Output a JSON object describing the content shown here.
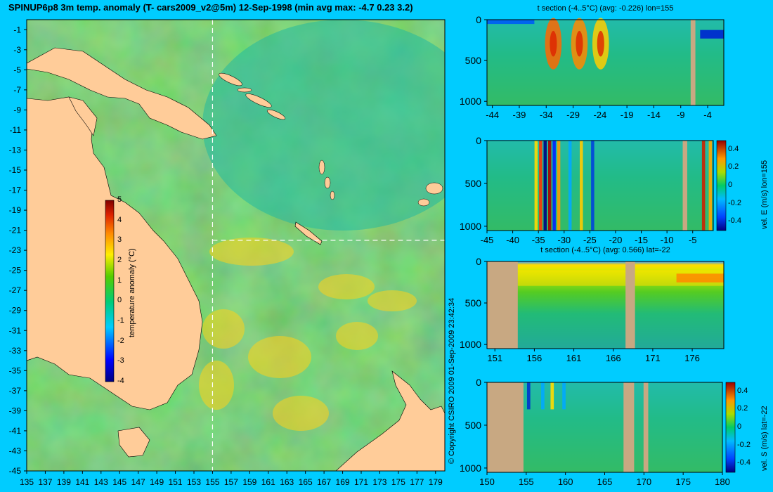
{
  "header": {
    "title": "SPINUP6p8 3m temp. anomaly (T- cars2009_v2@5m) 12-Sep-1998 (min avg max: -4.7 0.23 3.2)"
  },
  "copyright": "© Copyright CSIRO 2009  01-Sep-2009 23:42:34",
  "colors": {
    "background": "#00ccff",
    "land": "#ffcc99",
    "section_land": "#c8a882",
    "ocean_base": "#33bb55"
  },
  "map": {
    "xticks": [
      "135",
      "137",
      "139",
      "141",
      "143",
      "145",
      "147",
      "149",
      "151",
      "153",
      "155",
      "157",
      "159",
      "161",
      "163",
      "165",
      "167",
      "169",
      "171",
      "173",
      "175",
      "177",
      "179"
    ],
    "yticks": [
      "-1",
      "-3",
      "-5",
      "-7",
      "-9",
      "-11",
      "-13",
      "-15",
      "-17",
      "-19",
      "-21",
      "-23",
      "-25",
      "-27",
      "-29",
      "-31",
      "-33",
      "-35",
      "-37",
      "-39",
      "-41",
      "-43",
      "-45"
    ],
    "crosshair_lon": 155,
    "crosshair_lat": -22,
    "colorbar": {
      "label": "temperature anomaly (°C)",
      "ticks": [
        "5",
        "4",
        "3",
        "2",
        "1",
        "0",
        "-1",
        "-2",
        "-3",
        "-4"
      ],
      "range": [
        -4,
        5
      ]
    }
  },
  "panels": [
    {
      "title": "t section (-4..5°C) (avg: -0.226) lon=155",
      "yticks": [
        "0",
        "500",
        "1000"
      ],
      "xticks": [
        "-44",
        "-39",
        "-34",
        "-29",
        "-24",
        "-19",
        "-14",
        "-9",
        "-4"
      ],
      "xrange": [
        -45,
        -1
      ]
    },
    {
      "title": "",
      "yticks": [
        "0",
        "500",
        "1000"
      ],
      "xticks": [
        "-45",
        "-40",
        "-35",
        "-30",
        "-25",
        "-20",
        "-15",
        "-10",
        "-5"
      ],
      "xrange": [
        -45,
        -1
      ],
      "colorbar": {
        "label": "vel. E (m/s) lon=155",
        "ticks": [
          "0.4",
          "0.2",
          "0",
          "-0.2",
          "-0.4"
        ]
      }
    },
    {
      "title": "t section (-4..5°C) (avg: 0.566) lat=-22",
      "yticks": [
        "0",
        "500",
        "1000"
      ],
      "xticks": [
        "151",
        "156",
        "161",
        "166",
        "171",
        "176"
      ],
      "xrange": [
        150,
        180
      ]
    },
    {
      "title": "",
      "yticks": [
        "0",
        "500",
        "1000"
      ],
      "xticks": [
        "150",
        "155",
        "160",
        "165",
        "170",
        "175",
        "180"
      ],
      "xrange": [
        150,
        180
      ],
      "colorbar": {
        "label": "vel. S (m/s) lat=-22",
        "ticks": [
          "0.4",
          "0.2",
          "0",
          "-0.2",
          "-0.4"
        ]
      }
    }
  ],
  "chart_data": [
    {
      "type": "heatmap",
      "title": "SPINUP6p8 3m temp. anomaly (T- cars2009_v2@5m) 12-Sep-1998 (min avg max: -4.7 0.23 3.2)",
      "xlabel": "",
      "ylabel": "",
      "xlim": [
        135,
        180
      ],
      "ylim": [
        -45,
        0
      ],
      "value_range": [
        -4,
        5
      ],
      "colorbar_label": "temperature anomaly (°C)",
      "summary": {
        "min": -4.7,
        "avg": 0.23,
        "max": 3.2
      },
      "grid": false
    },
    {
      "type": "heatmap",
      "title": "t section (-4..5°C) (avg: -0.226) lon=155",
      "xlim": [
        -45,
        -1
      ],
      "ylim": [
        1050,
        0
      ],
      "value_range": [
        -4,
        5
      ],
      "avg": -0.226
    },
    {
      "type": "heatmap",
      "title": "",
      "xlim": [
        -45,
        -1
      ],
      "ylim": [
        1050,
        0
      ],
      "value_range": [
        -0.4,
        0.4
      ],
      "colorbar_label": "vel. E (m/s) lon=155"
    },
    {
      "type": "heatmap",
      "title": "t section (-4..5°C) (avg: 0.566) lat=-22",
      "xlim": [
        150,
        180
      ],
      "ylim": [
        1050,
        0
      ],
      "value_range": [
        -4,
        5
      ],
      "avg": 0.566
    },
    {
      "type": "heatmap",
      "title": "",
      "xlim": [
        150,
        180
      ],
      "ylim": [
        1050,
        0
      ],
      "value_range": [
        -0.4,
        0.4
      ],
      "colorbar_label": "vel. S (m/s) lat=-22"
    }
  ]
}
